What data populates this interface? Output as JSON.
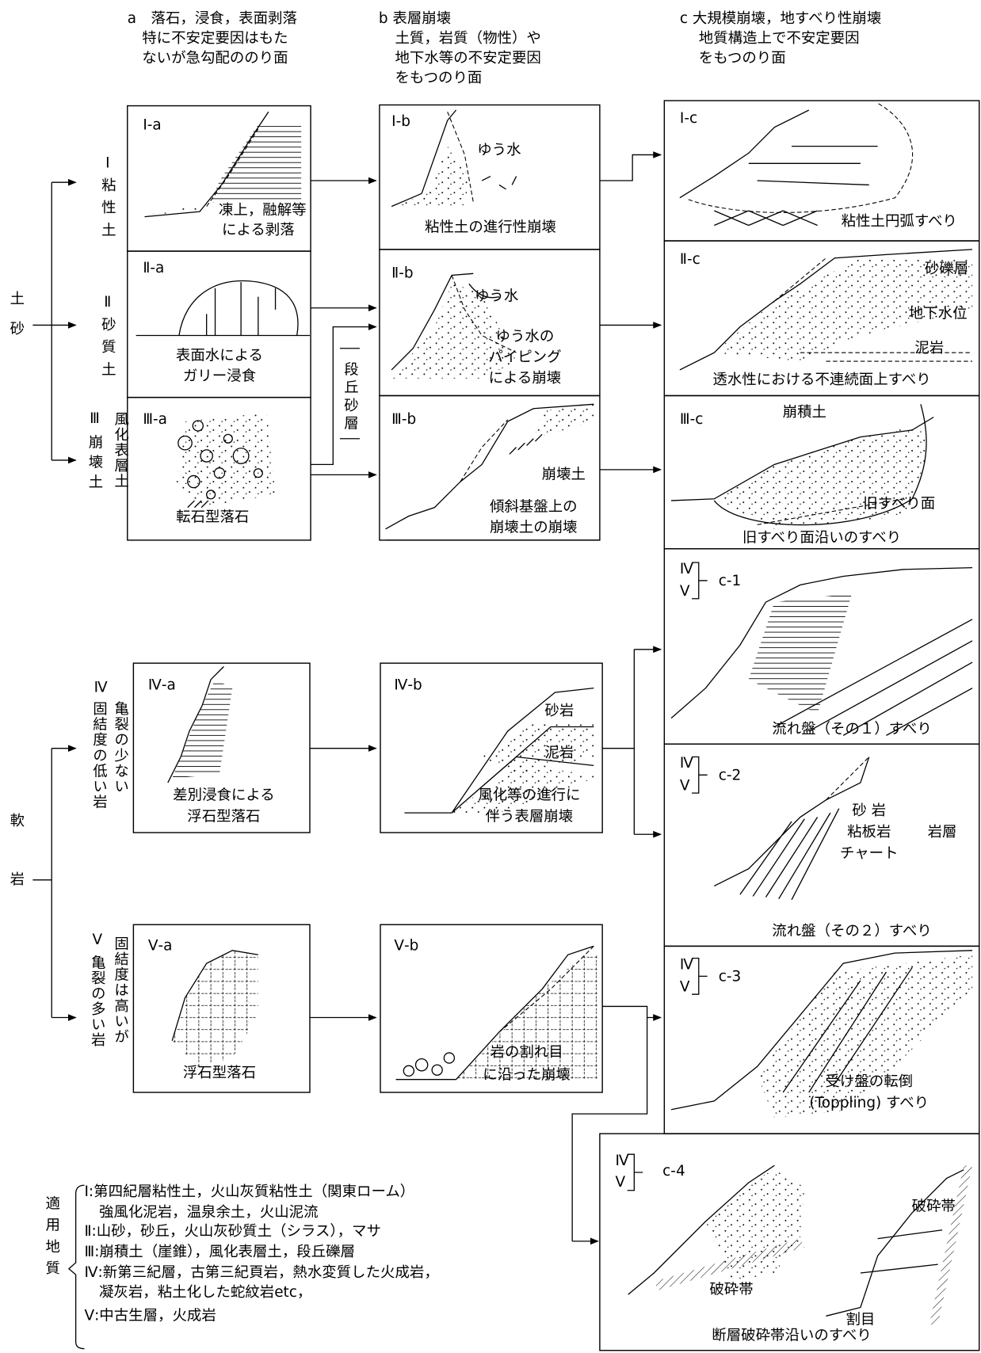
{
  "columns": [
    {
      "lines": [
        "a　落石，浸食，表面剥落",
        "特に不安定要因はもた",
        "ないが急勾配ののり面"
      ]
    },
    {
      "lines": [
        "b 表層崩壊",
        "土質，岩質（物性）や",
        "地下水等の不安定要因",
        "をもつのり面"
      ]
    },
    {
      "lines": [
        "c 大規模崩壊，地すべり性崩壊",
        "地質構造上で不安定要因",
        "をもつのり面"
      ]
    }
  ],
  "groups": [
    {
      "chars": [
        "土",
        "砂"
      ]
    },
    {
      "chars": [
        "軟",
        "岩"
      ]
    }
  ],
  "rows": [
    {
      "numeral": "Ⅰ",
      "columns": [
        "粘性土"
      ]
    },
    {
      "numeral": "Ⅱ",
      "columns": [
        "砂質土"
      ]
    },
    {
      "numeral": "Ⅲ",
      "columns": [
        "風化表層土",
        "崩壊土"
      ]
    },
    {
      "numeral": "Ⅳ",
      "columns": [
        "亀裂の少ない",
        "固結度の低い岩"
      ]
    },
    {
      "numeral": "Ⅴ",
      "columns": [
        "固結度は高いが",
        "亀裂の多い岩"
      ]
    }
  ],
  "terrace_label": "段丘砂層",
  "panels": [
    {
      "tag": [
        "Ⅰ-a"
      ],
      "notes": [],
      "caption": [
        "凍上，融解等",
        "による剥落"
      ]
    },
    {
      "tag": [
        "Ⅱ-a"
      ],
      "notes": [],
      "caption": [
        "表面水による",
        "ガリー浸食"
      ]
    },
    {
      "tag": [
        "Ⅲ-a"
      ],
      "notes": [],
      "caption": [
        "転石型落石"
      ]
    },
    {
      "tag": [
        "Ⅰ-b"
      ],
      "notes": [
        "ゆう水"
      ],
      "caption": [
        "粘性土の進行性崩壊"
      ]
    },
    {
      "tag": [
        "Ⅱ-b"
      ],
      "notes": [
        "ゆう水"
      ],
      "caption": [
        "ゆう水の",
        "パイピング",
        "による崩壊"
      ]
    },
    {
      "tag": [
        "Ⅲ-b"
      ],
      "notes": [
        "崩壊土"
      ],
      "caption": [
        "傾斜基盤上の",
        "崩壊土の崩壊"
      ]
    },
    {
      "tag": [
        "Ⅰ-c"
      ],
      "notes": [],
      "caption": [
        "粘性土円弧すべり"
      ]
    },
    {
      "tag": [
        "Ⅱ-c"
      ],
      "notes": [
        "砂礫層",
        "地下水位",
        "泥岩"
      ],
      "caption": [
        "透水性における不連続面上すべり"
      ]
    },
    {
      "tag": [
        "Ⅲ-c"
      ],
      "notes": [
        "崩積土",
        "旧すべり面"
      ],
      "caption": [
        "旧すべり面沿いのすべり"
      ]
    },
    {
      "tag": [
        "Ⅳ",
        "Ⅴ",
        "c-1"
      ],
      "notes": [],
      "caption": [
        "流れ盤（その１）すべり"
      ]
    },
    {
      "tag": [
        "Ⅳ-a"
      ],
      "notes": [],
      "caption": [
        "差別浸食による",
        "浮石型落石"
      ]
    },
    {
      "tag": [
        "Ⅳ-b"
      ],
      "notes": [
        "砂岩",
        "泥岩"
      ],
      "caption": [
        "風化等の進行に",
        "伴う表層崩壊"
      ]
    },
    {
      "tag": [
        "Ⅳ",
        "Ⅴ",
        "c-2"
      ],
      "notes": [
        "砂 岩",
        "粘板岩",
        "岩層",
        "チャート"
      ],
      "caption": [
        "流れ盤（その２）すべり"
      ]
    },
    {
      "tag": [
        "Ⅴ-a"
      ],
      "notes": [],
      "caption": [
        "浮石型落石"
      ]
    },
    {
      "tag": [
        "Ⅴ-b"
      ],
      "notes": [],
      "caption": [
        "岩の割れ目",
        "に沿った崩壊"
      ]
    },
    {
      "tag": [
        "Ⅳ",
        "Ⅴ",
        "c-3"
      ],
      "notes": [],
      "caption": [
        "受け盤の転倒",
        "(Toppling) すべり"
      ]
    },
    {
      "tag": [
        "Ⅳ",
        "Ⅴ",
        "c-4"
      ],
      "notes": [
        "破砕帯",
        "破砕帯",
        "割目"
      ],
      "caption": [
        "断層破砕帯沿いのすべり"
      ]
    }
  ],
  "legend": {
    "title": "適用地質",
    "lines": [
      "Ⅰ:第四紀層粘性土，火山灰質粘性土（関東ローム）",
      "強風化泥岩，温泉余土，火山泥流",
      "Ⅱ:山砂，砂丘，火山灰砂質土（シラス），マサ",
      "Ⅲ:崩積土（崖錐），風化表層土，段丘礫層",
      "Ⅳ:新第三紀層，古第三紀頁岩，熱水変質した火成岩，",
      "凝灰岩，粘土化した蛇紋岩etc，",
      "Ⅴ:中古生層，火成岩"
    ]
  }
}
